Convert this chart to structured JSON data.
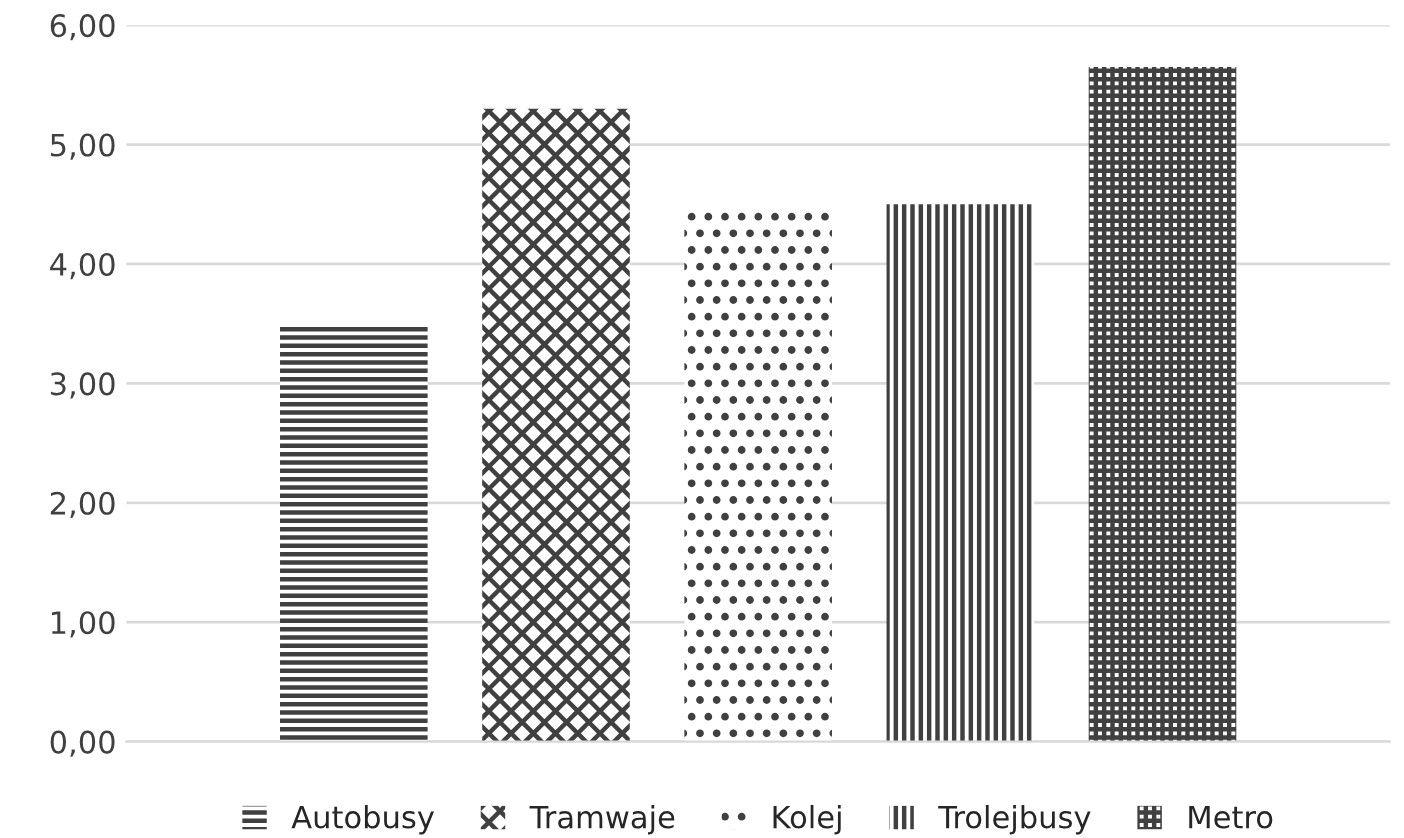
{
  "chart_data": {
    "type": "bar",
    "categories": [
      null
    ],
    "series": [
      {
        "name": "Autobusy",
        "color": "#404040",
        "values": [
          3.48
        ]
      },
      {
        "name": "Tramwaje",
        "color": "#404040",
        "values": [
          5.3
        ]
      },
      {
        "name": "Kolej",
        "color": "#404040",
        "values": [
          4.44
        ]
      },
      {
        "name": "Trolejbusy",
        "color": "#404040",
        "values": [
          4.5
        ]
      },
      {
        "name": "Metro",
        "color": "#404040",
        "values": [
          5.65
        ]
      }
    ],
    "ylim": [
      0,
      6
    ],
    "yticks": [
      {
        "value": 0,
        "label": "0,00"
      },
      {
        "value": 1,
        "label": "1,00"
      },
      {
        "value": 2,
        "label": "2,00"
      },
      {
        "value": 3,
        "label": "3,00"
      },
      {
        "value": 4,
        "label": "4,00"
      },
      {
        "value": 5,
        "label": "5,00"
      },
      {
        "value": 6,
        "label": "6,00"
      }
    ],
    "grid": "y",
    "legend": "bottom"
  }
}
